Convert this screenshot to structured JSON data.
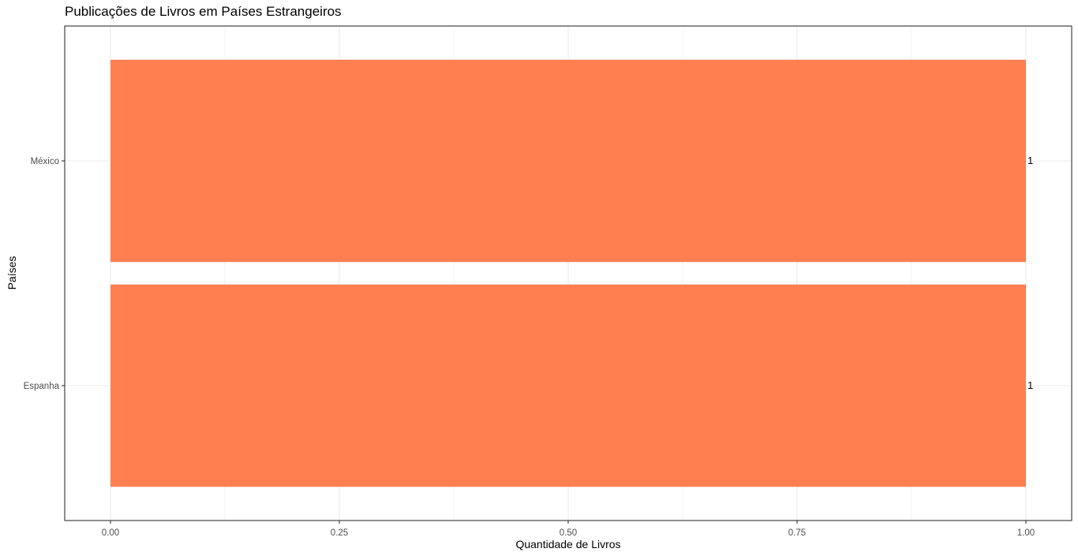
{
  "chart_data": {
    "type": "bar",
    "orientation": "horizontal",
    "title": "Publicações de Livros em Países Estrangeiros",
    "xlabel": "Quantidade de Livros",
    "ylabel": "Países",
    "categories": [
      "Espanha",
      "México"
    ],
    "values": [
      1,
      1
    ],
    "data_labels": [
      "1",
      "1"
    ],
    "xlim": [
      -0.05,
      1.05
    ],
    "xticks": [
      0.0,
      0.25,
      0.5,
      0.75,
      1.0
    ],
    "xtick_labels": [
      "0.00",
      "0.25",
      "0.50",
      "0.75",
      "1.00"
    ],
    "grid": true,
    "legend": "none",
    "colors": {
      "bar": "#FF7F50",
      "grid": "#EBEBEB",
      "panel_border": "#333333",
      "axis_text": "#4D4D4D"
    }
  }
}
